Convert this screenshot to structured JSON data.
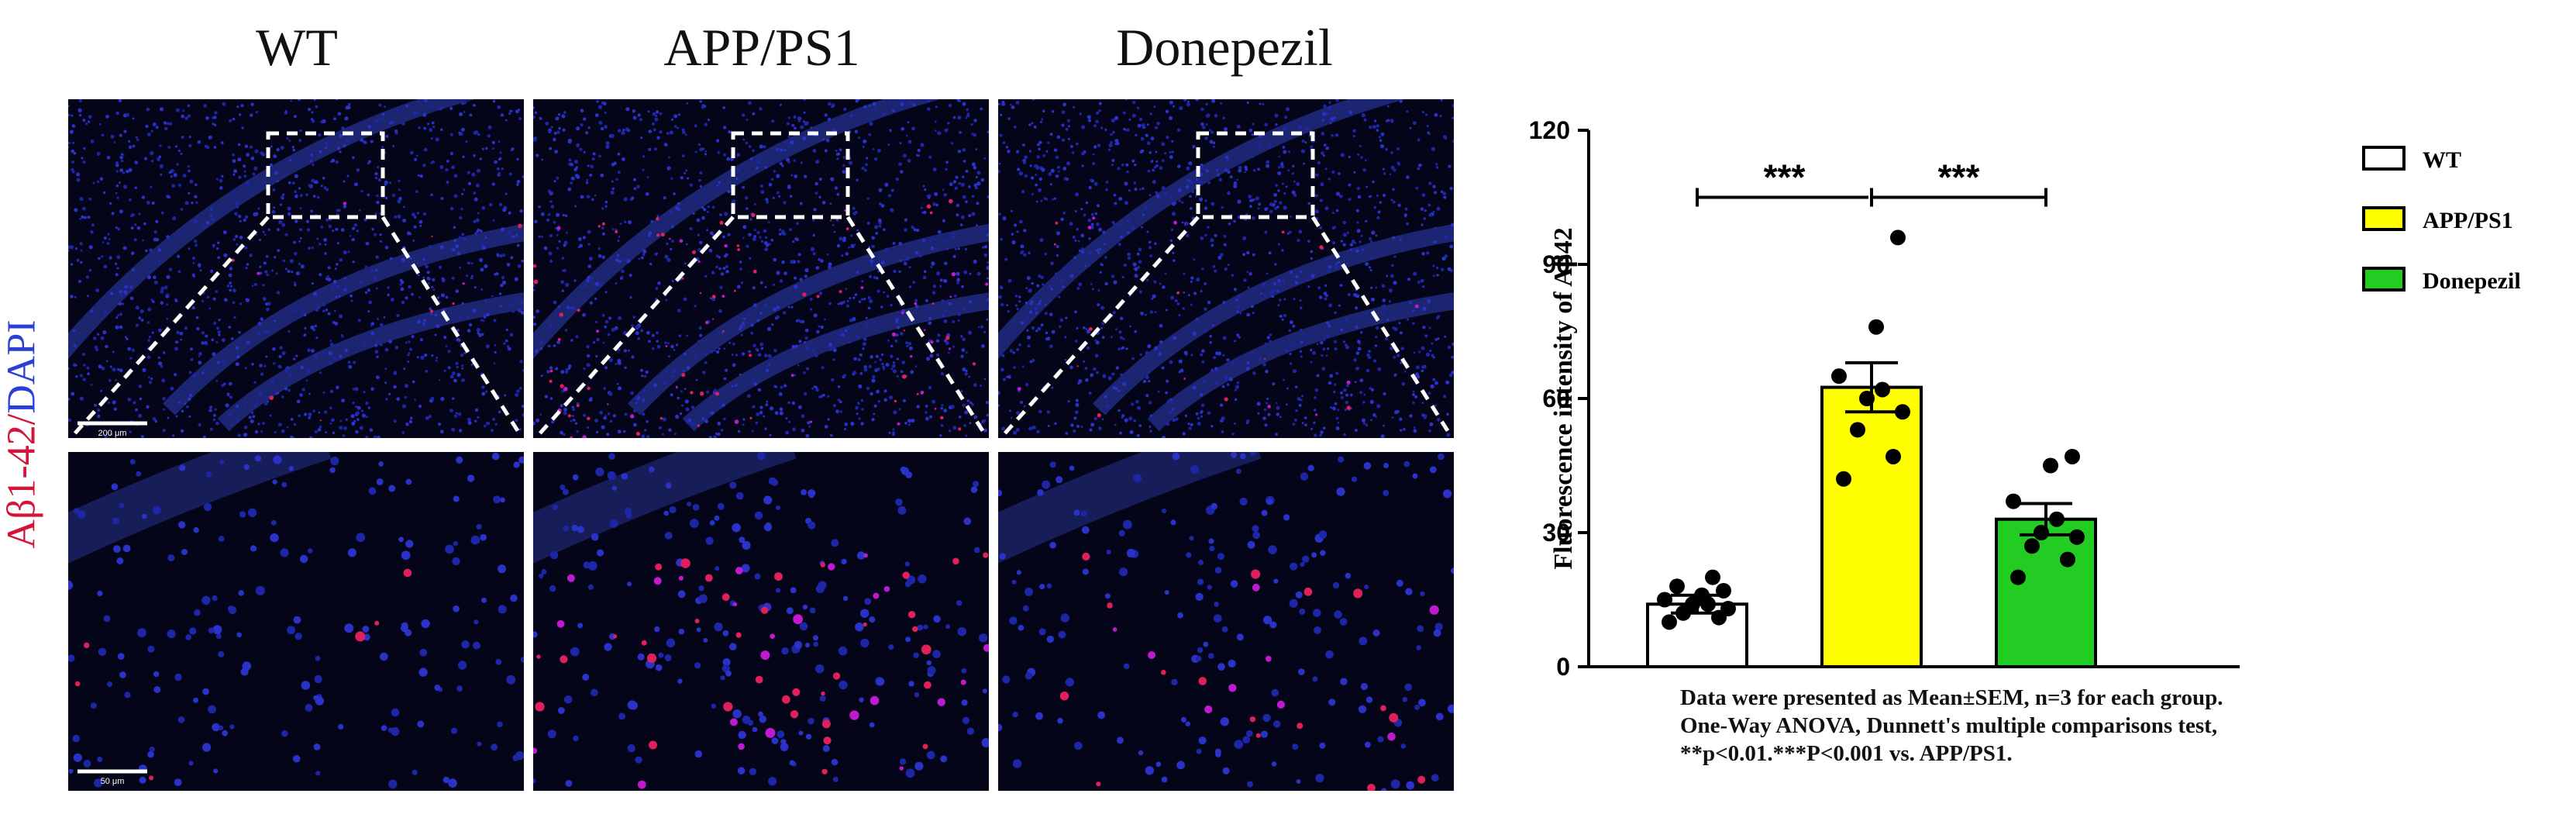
{
  "columns": [
    "WT",
    "APP/PS1",
    "Donepezil"
  ],
  "side_label": {
    "part1": "Aβ1-42",
    "sep": "/",
    "part2": "DAPI"
  },
  "scale_bars": {
    "top": "200 μm",
    "bottom": "50 μm"
  },
  "chart_data": {
    "type": "bar",
    "categories": [
      "WT",
      "APP/PS1",
      "Donepezil"
    ],
    "values": [
      14,
      62.5,
      33
    ],
    "errors": [
      2,
      5.5,
      3.5
    ],
    "colors": [
      "#ffffff",
      "#ffff00",
      "#22cc22"
    ],
    "points": [
      [
        10,
        11,
        12,
        13,
        14,
        14,
        15,
        16,
        17,
        18,
        20
      ],
      [
        42,
        47,
        53,
        57,
        60,
        62,
        65,
        76,
        96
      ],
      [
        20,
        24,
        27,
        29,
        30,
        33,
        37,
        45,
        47
      ]
    ],
    "ylabel": "Fluorescence intensity of Aβ42",
    "ylim": [
      0,
      120
    ],
    "yticks": [
      0,
      30,
      60,
      90,
      120
    ],
    "legend": [
      "WT",
      "APP/PS1",
      "Donepezil"
    ],
    "legend_position": "top-right",
    "significance": [
      {
        "from": 0,
        "to": 1,
        "label": "***"
      },
      {
        "from": 1,
        "to": 2,
        "label": "***"
      }
    ]
  },
  "note_lines": [
    "Data were presented as Mean±SEM,   n=3 for each group.",
    "One-Way ANOVA,  Dunnett's multiple comparisons test,",
    "**p<0.01.***P<0.001 vs. APP/PS1."
  ]
}
